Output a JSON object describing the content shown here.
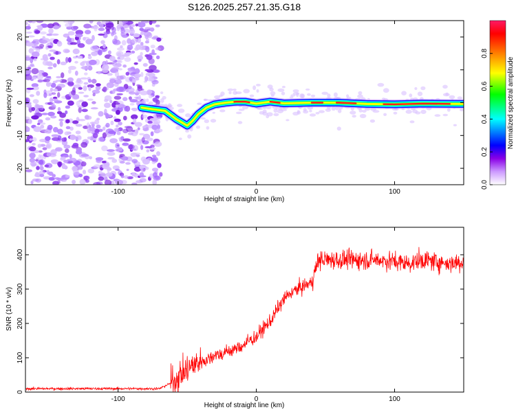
{
  "title": "S126.2025.257.21.35.G18",
  "chart_data": [
    {
      "type": "heatmap",
      "title": "S126.2025.257.21.35.G18",
      "xlabel": "Height of straight line (km)",
      "ylabel": "Frequency (Hz)",
      "xlim": [
        -167,
        150
      ],
      "ylim": [
        -25,
        25
      ],
      "xticks": [
        -100,
        0,
        100
      ],
      "yticks": [
        -20,
        -10,
        0,
        10,
        20
      ],
      "noise_region_x": [
        -167,
        -72
      ],
      "ridge": {
        "x": [
          -83,
          -75,
          -66,
          -58,
          -54,
          -50,
          -46,
          -42,
          -36,
          -30,
          -22,
          -15,
          -8,
          0,
          10,
          20,
          40,
          60,
          80,
          100,
          120,
          150
        ],
        "y": [
          -1.5,
          -2.0,
          -2.5,
          -5.0,
          -6.0,
          -7.0,
          -5.5,
          -3.5,
          -1.5,
          -0.5,
          0.0,
          0.3,
          0.3,
          -0.3,
          0.3,
          -0.2,
          0.0,
          0.0,
          -0.4,
          -0.5,
          -0.3,
          -0.4
        ]
      },
      "colorbar": {
        "label": "Normalized spectral amplitude",
        "range": [
          0,
          1
        ],
        "ticks": [
          "0.0",
          "0.2",
          "0.4",
          "0.6",
          "0.8"
        ],
        "colors": [
          "#ffffff",
          "#cc99ff",
          "#7a00e6",
          "#0000ff",
          "#00ffff",
          "#00ff00",
          "#ffff00",
          "#ff7f00",
          "#ff0000",
          "#ff1a66"
        ]
      }
    },
    {
      "type": "line",
      "xlabel": "Height of straight line (km)",
      "ylabel": "SNR (10 * v/v)",
      "xlim": [
        -167,
        150
      ],
      "ylim": [
        0,
        480
      ],
      "xticks": [
        -100,
        0,
        100
      ],
      "yticks": [
        0,
        100,
        200,
        300,
        400
      ],
      "series": [
        {
          "name": "SNR",
          "color": "#ff0000",
          "x": [
            -167,
            -120,
            -80,
            -70,
            -60,
            -55,
            -50,
            -45,
            -40,
            -35,
            -30,
            -25,
            -20,
            -15,
            -10,
            -5,
            0,
            5,
            10,
            15,
            20,
            25,
            30,
            35,
            40,
            45,
            50,
            60,
            70,
            80,
            90,
            100,
            110,
            120,
            130,
            140,
            150
          ],
          "values": [
            10,
            10,
            10,
            10,
            30,
            50,
            65,
            80,
            90,
            95,
            110,
            110,
            120,
            125,
            135,
            150,
            160,
            185,
            205,
            240,
            270,
            290,
            300,
            310,
            320,
            385,
            385,
            385,
            385,
            385,
            385,
            380,
            375,
            385,
            380,
            375,
            380
          ]
        }
      ]
    }
  ]
}
